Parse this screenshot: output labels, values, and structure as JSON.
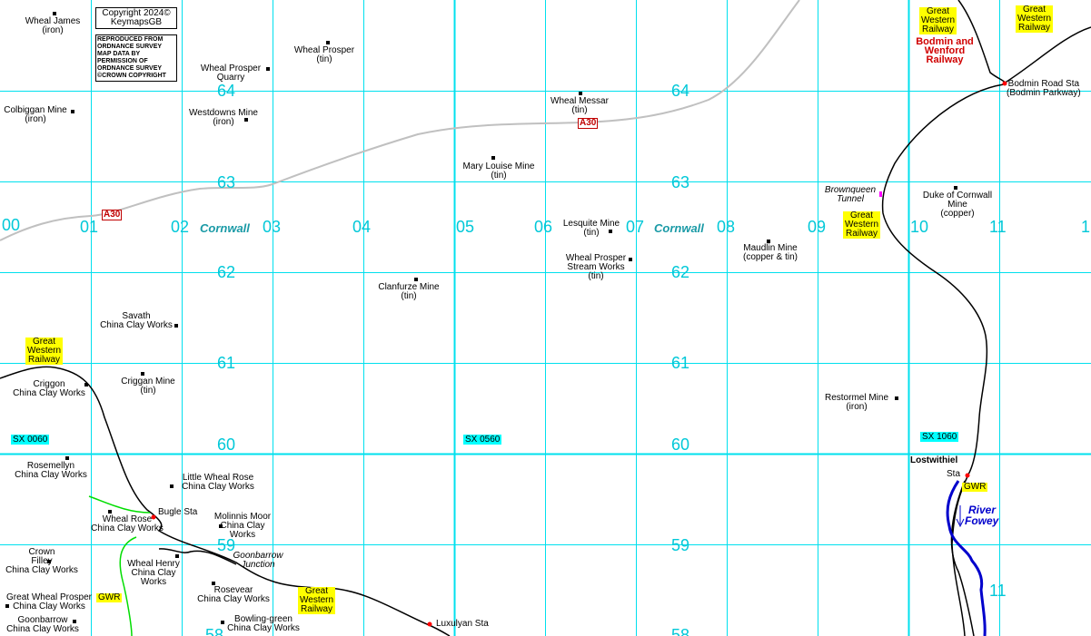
{
  "grid_x_labels": [
    "00",
    "01",
    "02",
    "03",
    "04",
    "05",
    "06",
    "07",
    "08",
    "09",
    "10",
    "11",
    "1"
  ],
  "grid_y_labels_left": [
    "64",
    "63",
    "62",
    "61",
    "60",
    "59",
    "58"
  ],
  "grid_y_labels_right": [
    "64",
    "63",
    "62",
    "61",
    "60",
    "59",
    "58"
  ],
  "grid_square_labels": [
    "SX 0060",
    "SX 0560",
    "SX 1060"
  ],
  "copyright": {
    "line1": "Copyright 2024©",
    "line2": "KeymapsGB"
  },
  "os_notice": [
    "REPRODUCED FROM",
    "ORDNANCE SURVEY",
    "MAP DATA BY",
    "PERMISSION OF",
    "ORDNANCE SURVEY",
    "©CROWN COPYRIGHT"
  ],
  "county_labels": [
    "Cornwall",
    "Cornwall"
  ],
  "road_labels": [
    "A30",
    "A30"
  ],
  "railway_labels": {
    "gwr_top_left": [
      "Great",
      "Western",
      "Railway"
    ],
    "gwr_top_right": [
      "Great",
      "Western",
      "Railway"
    ],
    "gwr_mid_right": [
      "Great",
      "Western",
      "Railway"
    ],
    "gwr_left": [
      "Great",
      "Western",
      "Railway"
    ],
    "gwr_bottom": [
      "Great",
      "Western",
      "Railway"
    ],
    "bodmin_wenford": [
      "Bodmin and",
      "Wenford",
      "Railway"
    ],
    "gwr_tag_left": "GWR",
    "gwr_tag_right": "GWR"
  },
  "stations": {
    "bodmin_road": [
      "Bodmin Road Sta",
      "(Bodmin Parkway)"
    ],
    "lostwithiel": "Lostwithiel",
    "lostwithiel_sta": "Sta",
    "bugle": "Bugle Sta",
    "luxulyan": "Luxulyan Sta"
  },
  "features": {
    "brownqueen": [
      "Brownqueen",
      "Tunnel"
    ],
    "goonbarrow_junction": [
      "Goonbarrow",
      "Junction"
    ],
    "river_fowey": [
      "River",
      "Fowey"
    ]
  },
  "sites": {
    "wheal_james": [
      "Wheal James",
      "(iron)"
    ],
    "wheal_prosper_tin": [
      "Wheal Prosper",
      "(tin)"
    ],
    "wheal_prosper_quarry": [
      "Wheal Prosper",
      "Quarry"
    ],
    "colbiggan": [
      "Colbiggan Mine",
      "(iron)"
    ],
    "westdowns": [
      "Westdowns Mine",
      "(iron)"
    ],
    "wheal_messar": [
      "Wheal Messar",
      "(tin)"
    ],
    "mary_louise": [
      "Mary Louise Mine",
      "(tin)"
    ],
    "duke_of_cornwall": [
      "Duke of Cornwall",
      "Mine",
      "(copper)"
    ],
    "lesquite": [
      "Lesquite Mine",
      "(tin)"
    ],
    "wheal_prosper_stream": [
      "Wheal Prosper",
      "Stream Works",
      "(tin)"
    ],
    "maudlin": [
      "Maudlin Mine",
      "(copper & tin)"
    ],
    "clanfurze": [
      "Clanfurze Mine",
      "(tin)"
    ],
    "savath": [
      "Savath",
      "China Clay Works"
    ],
    "criggan_mine": [
      "Criggan Mine",
      "(tin)"
    ],
    "criggan_works": [
      "Criggon",
      "China Clay Works"
    ],
    "restormel": [
      "Restormel Mine",
      "(iron)"
    ],
    "rosemellyn": [
      "Rosemellyn",
      "China Clay Works"
    ],
    "little_wheal_rose": [
      "Little Wheal Rose",
      "China Clay Works"
    ],
    "wheal_rose": [
      "Wheal Rose",
      "China Clay Works"
    ],
    "molinnis_moor": [
      "Molinnis Moor",
      "China Clay",
      "Works"
    ],
    "crown_filley": [
      "Crown",
      "Filley",
      "China Clay Works"
    ],
    "wheal_henry": [
      "Wheal Henry",
      "China Clay",
      "Works"
    ],
    "rosevear": [
      "Rosevear",
      "China Clay Works"
    ],
    "great_wheal_prosper": [
      "Great Wheal Prosper",
      "China Clay Works"
    ],
    "goonbarrow_works": [
      "Goonbarrow",
      "China Clay Works"
    ],
    "bowling_green": [
      "Bowling-green",
      "China Clay Works"
    ]
  },
  "colors": {
    "grid": "#00e0ee",
    "road": "#c0c0c0",
    "rail": "#000000",
    "river": "#0000cc",
    "green_line": "#00dd00",
    "highlight": "#ffff00",
    "station": "#ff0000"
  }
}
